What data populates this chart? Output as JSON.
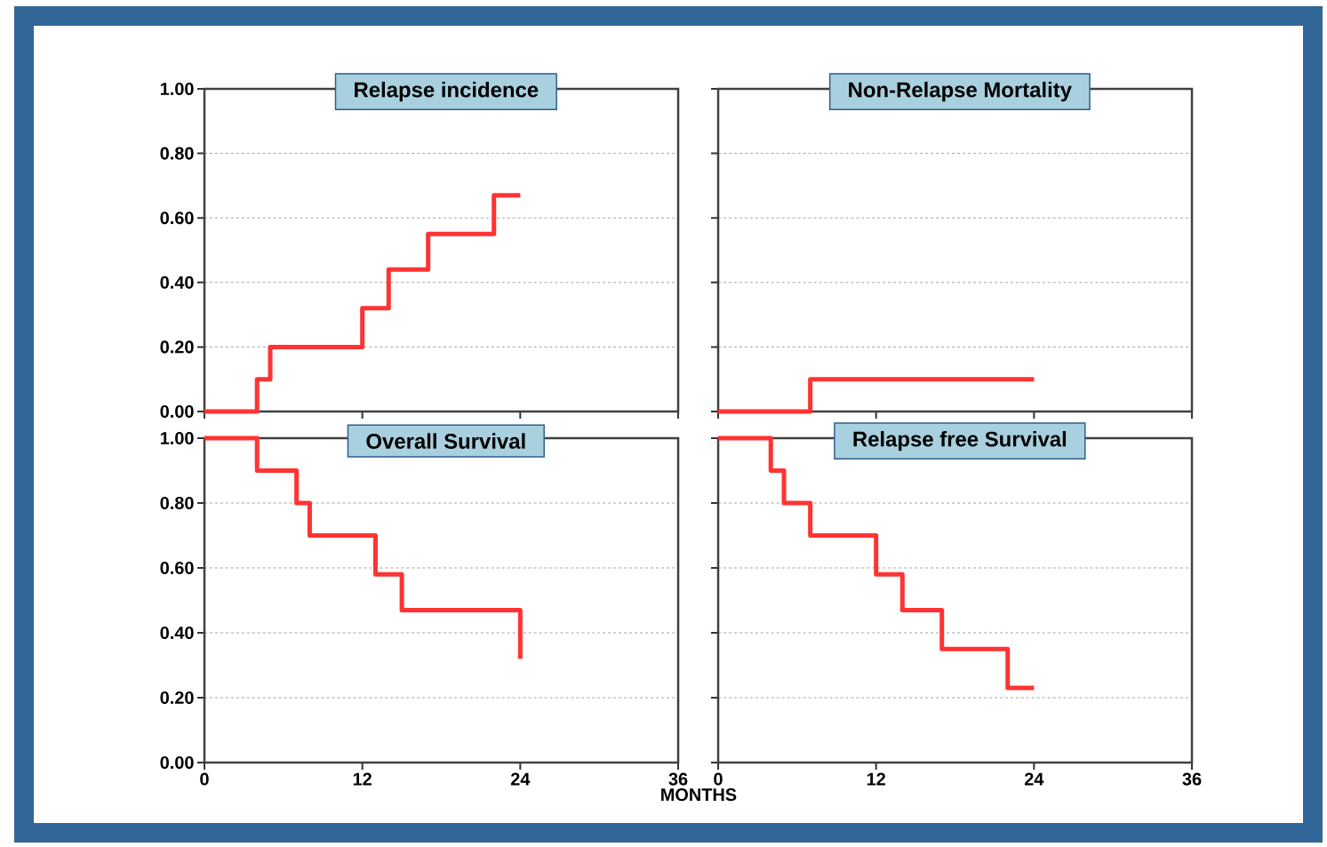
{
  "chart_data": [
    {
      "type": "step",
      "title": "Relapse incidence",
      "x": [
        0,
        4,
        5,
        12,
        14,
        17,
        22,
        24
      ],
      "series": [
        {
          "color": "#ff3333",
          "values": [
            0,
            0.1,
            0.2,
            0.32,
            0.44,
            0.55,
            0.67,
            0.67
          ]
        }
      ],
      "xlim": [
        0,
        36
      ],
      "ylim": [
        0,
        1
      ],
      "xticks": [
        {
          "value": 0,
          "label": null
        },
        {
          "value": 12,
          "label": null
        },
        {
          "value": 24,
          "label": null
        },
        {
          "value": 36,
          "label": null
        }
      ],
      "yticks": [
        {
          "value": 0,
          "label": "0.00"
        },
        {
          "value": 0.2,
          "label": "0.20"
        },
        {
          "value": 0.4,
          "label": "0.40"
        },
        {
          "value": 0.6,
          "label": "0.60"
        },
        {
          "value": 0.8,
          "label": "0.80"
        },
        {
          "value": 1,
          "label": "1.00"
        }
      ],
      "grid": "y",
      "tick_labels": "y"
    },
    {
      "type": "step",
      "title": "Non-Relapse Mortality",
      "x": [
        0,
        7,
        24
      ],
      "series": [
        {
          "color": "#ff3333",
          "values": [
            0,
            0.1,
            0.1
          ]
        }
      ],
      "xlim": [
        0,
        36
      ],
      "ylim": [
        0,
        1
      ],
      "xticks": [
        {
          "value": 0,
          "label": null
        },
        {
          "value": 12,
          "label": null
        },
        {
          "value": 24,
          "label": null
        },
        {
          "value": 36,
          "label": null
        }
      ],
      "yticks": [
        {
          "value": 0,
          "label": null
        },
        {
          "value": 0.2,
          "label": null
        },
        {
          "value": 0.4,
          "label": null
        },
        {
          "value": 0.6,
          "label": null
        },
        {
          "value": 0.8,
          "label": null
        },
        {
          "value": 1,
          "label": null
        }
      ],
      "grid": "y",
      "tick_labels": false
    },
    {
      "type": "step",
      "title": "Overall Survival",
      "xlabel": "MONTHS",
      "x": [
        0,
        4,
        7,
        8,
        13,
        15,
        24
      ],
      "series": [
        {
          "color": "#ff3333",
          "values": [
            1,
            0.9,
            0.8,
            0.7,
            0.58,
            0.47,
            0.32
          ]
        }
      ],
      "xlim": [
        0,
        36
      ],
      "ylim": [
        0,
        1
      ],
      "xticks": [
        0,
        12,
        24,
        36
      ],
      "yticks": [
        {
          "value": 0,
          "label": "0.00"
        },
        {
          "value": 0.2,
          "label": "0.20"
        },
        {
          "value": 0.4,
          "label": "0.40"
        },
        {
          "value": 0.6,
          "label": "0.60"
        },
        {
          "value": 0.8,
          "label": "0.80"
        },
        {
          "value": 1,
          "label": "1.00"
        }
      ],
      "grid": "y"
    },
    {
      "type": "step",
      "title": "Relapse free Survival",
      "x": [
        0,
        4,
        5,
        7,
        12,
        14,
        17,
        22,
        24
      ],
      "series": [
        {
          "color": "#ff3333",
          "values": [
            1,
            0.9,
            0.8,
            0.7,
            0.58,
            0.47,
            0.35,
            0.23,
            0.23
          ]
        }
      ],
      "xlim": [
        0,
        36
      ],
      "ylim": [
        0,
        1
      ],
      "xticks": [
        0,
        12,
        24,
        36
      ],
      "yticks": [
        {
          "value": 0,
          "label": null
        },
        {
          "value": 0.2,
          "label": null
        },
        {
          "value": 0.4,
          "label": null
        },
        {
          "value": 0.6,
          "label": null
        },
        {
          "value": 0.8,
          "label": null
        },
        {
          "value": 1,
          "label": null
        }
      ],
      "grid": "y",
      "tick_labels": "x"
    }
  ]
}
